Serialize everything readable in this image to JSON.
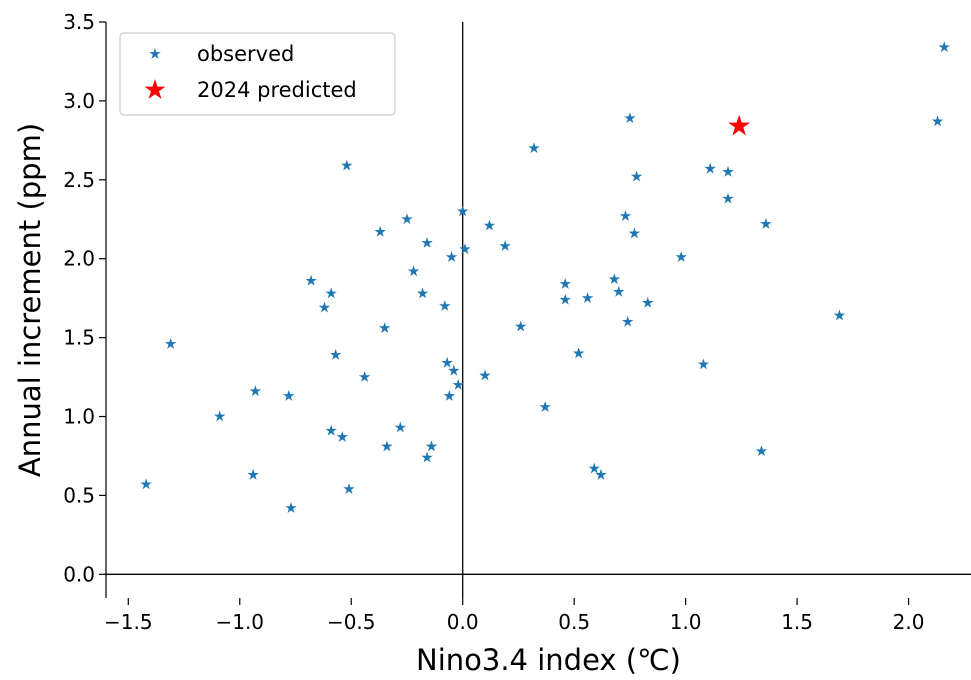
{
  "chart_data": {
    "type": "scatter",
    "title": "",
    "xlabel": "Nino3.4 index (℃)",
    "ylabel": "Annual increment (ppm)",
    "xlim": [
      -1.6,
      2.28
    ],
    "ylim": [
      -0.15,
      3.5
    ],
    "x_ticks": [
      -1.5,
      -1.0,
      -0.5,
      0.0,
      0.5,
      1.0,
      1.5,
      2.0
    ],
    "x_tick_labels": [
      "−1.5",
      "−1.0",
      "−0.5",
      "0.0",
      "0.5",
      "1.0",
      "1.5",
      "2.0"
    ],
    "y_ticks": [
      0.0,
      0.5,
      1.0,
      1.5,
      2.0,
      2.5,
      3.0,
      3.5
    ],
    "y_tick_labels": [
      "0.0",
      "0.5",
      "1.0",
      "1.5",
      "2.0",
      "2.5",
      "3.0",
      "3.5"
    ],
    "grid": false,
    "legend_position": "top-left",
    "reference_lines": {
      "x": 0.0,
      "y": 0.0
    },
    "series": [
      {
        "name": "observed",
        "marker": "star",
        "color": "#1f77b4",
        "points": [
          [
            -1.42,
            0.57
          ],
          [
            -1.31,
            1.46
          ],
          [
            -1.09,
            1.0
          ],
          [
            -0.94,
            0.63
          ],
          [
            -0.93,
            1.16
          ],
          [
            -0.78,
            1.13
          ],
          [
            -0.77,
            0.42
          ],
          [
            -0.68,
            1.86
          ],
          [
            -0.62,
            1.69
          ],
          [
            -0.59,
            1.78
          ],
          [
            -0.59,
            0.91
          ],
          [
            -0.57,
            1.39
          ],
          [
            -0.54,
            0.87
          ],
          [
            -0.52,
            2.59
          ],
          [
            -0.51,
            0.54
          ],
          [
            -0.44,
            1.25
          ],
          [
            -0.37,
            2.17
          ],
          [
            -0.35,
            1.56
          ],
          [
            -0.34,
            0.81
          ],
          [
            -0.28,
            0.93
          ],
          [
            -0.25,
            2.25
          ],
          [
            -0.22,
            1.92
          ],
          [
            -0.18,
            1.78
          ],
          [
            -0.16,
            2.1
          ],
          [
            -0.16,
            0.74
          ],
          [
            -0.14,
            0.81
          ],
          [
            -0.08,
            1.7
          ],
          [
            -0.07,
            1.34
          ],
          [
            -0.06,
            1.13
          ],
          [
            -0.05,
            2.01
          ],
          [
            -0.04,
            1.29
          ],
          [
            -0.02,
            1.2
          ],
          [
            0.0,
            2.3
          ],
          [
            0.01,
            2.06
          ],
          [
            0.1,
            1.26
          ],
          [
            0.12,
            2.21
          ],
          [
            0.19,
            2.08
          ],
          [
            0.26,
            1.57
          ],
          [
            0.32,
            2.7
          ],
          [
            0.37,
            1.06
          ],
          [
            0.46,
            1.84
          ],
          [
            0.46,
            1.74
          ],
          [
            0.52,
            1.4
          ],
          [
            0.56,
            1.75
          ],
          [
            0.59,
            0.67
          ],
          [
            0.62,
            0.63
          ],
          [
            0.68,
            1.87
          ],
          [
            0.7,
            1.79
          ],
          [
            0.73,
            2.27
          ],
          [
            0.74,
            1.6
          ],
          [
            0.75,
            2.89
          ],
          [
            0.77,
            2.16
          ],
          [
            0.78,
            2.52
          ],
          [
            0.83,
            1.72
          ],
          [
            0.98,
            2.01
          ],
          [
            1.08,
            1.33
          ],
          [
            1.11,
            2.57
          ],
          [
            1.19,
            2.55
          ],
          [
            1.19,
            2.38
          ],
          [
            1.34,
            0.78
          ],
          [
            1.36,
            2.22
          ],
          [
            1.69,
            1.64
          ],
          [
            2.13,
            2.87
          ],
          [
            2.16,
            3.34
          ]
        ]
      },
      {
        "name": "2024 predicted",
        "marker": "star",
        "color": "#ff0000",
        "points": [
          [
            1.24,
            2.84
          ]
        ]
      }
    ]
  }
}
